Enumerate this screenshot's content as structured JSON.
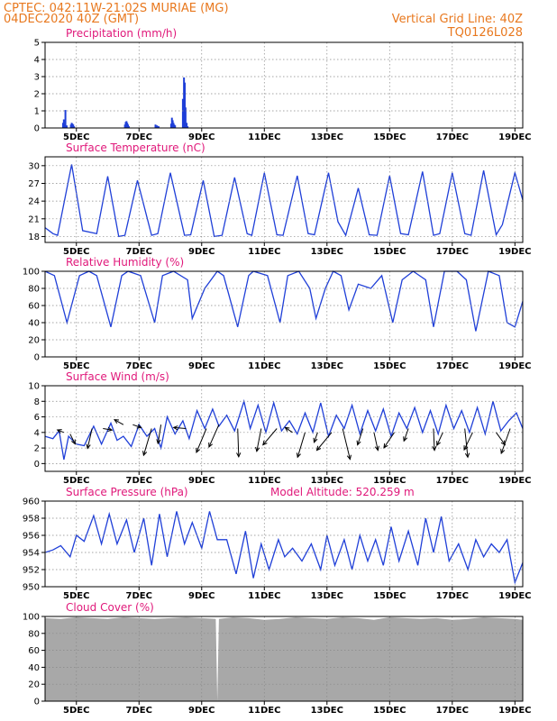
{
  "header": {
    "line1": "CPTEC:   042:11W-21:02S   MURIAE (MG)",
    "line2": "04DEC2020 40Z (GMT)",
    "grid_note": "Vertical Grid Line: 40Z",
    "run_code": "TQ0126L028"
  },
  "colors": {
    "header": "#e8781e",
    "panel_title": "#e0187a",
    "series": "#1f3fd8",
    "cloud": "#a8a8a8",
    "grid": "#888888"
  },
  "chart_data": [
    {
      "id": "precip",
      "type": "bar",
      "title": "Precipitation (mm/h)",
      "ylim": [
        0,
        5
      ],
      "yticks": [
        0,
        1,
        2,
        3,
        4,
        5
      ],
      "x_tick_labels": [
        "5DEC",
        "7DEC",
        "9DEC",
        "11DEC",
        "13DEC",
        "15DEC",
        "17DEC",
        "19DEC"
      ],
      "x": [
        1.15,
        1.2,
        1.27,
        1.3,
        1.38,
        1.65,
        1.7,
        1.75,
        1.8,
        1.85,
        5.1,
        5.15,
        5.2,
        5.25,
        5.3,
        5.35,
        7.05,
        7.15,
        7.25,
        8.05,
        8.1,
        8.15,
        8.2,
        8.25,
        8.3,
        8.8,
        8.87,
        8.92,
        8.97,
        9.04,
        9.1
      ],
      "values": [
        0.3,
        0.5,
        0.2,
        1.05,
        0.15,
        0.2,
        0.3,
        0.25,
        0.2,
        0.1,
        0.2,
        0.35,
        0.4,
        0.3,
        0.2,
        0.1,
        0.2,
        0.15,
        0.1,
        0.25,
        0.6,
        0.45,
        0.3,
        0.2,
        0.15,
        1.7,
        2.95,
        2.65,
        1.2,
        0.3,
        0.1
      ],
      "grid": true
    },
    {
      "id": "temp",
      "type": "line",
      "title": "Surface Temperature (nC)",
      "ylim": [
        17,
        31.5
      ],
      "yticks": [
        18,
        21,
        24,
        27,
        30
      ],
      "x_tick_labels": [
        "5DEC",
        "7DEC",
        "9DEC",
        "11DEC",
        "13DEC",
        "15DEC",
        "17DEC",
        "19DEC"
      ],
      "x": [
        0,
        0.5,
        0.8,
        1.7,
        2.4,
        3.3,
        4.0,
        4.7,
        5.1,
        5.9,
        6.8,
        7.2,
        8.0,
        8.9,
        9.3,
        10.1,
        10.8,
        11.3,
        12.1,
        12.9,
        13.2,
        14.0,
        14.8,
        15.2,
        16.1,
        16.8,
        17.2,
        18.1,
        18.7,
        19.2,
        20.0,
        20.7,
        21.2,
        22.0,
        22.7,
        23.2,
        24.1,
        24.8,
        25.2,
        26.0,
        26.8,
        27.2,
        28.0,
        28.8,
        29.2,
        30.0,
        30.5
      ],
      "values": [
        19.5,
        18.5,
        18.2,
        30.2,
        19.0,
        18.5,
        28.2,
        18.0,
        18.2,
        27.5,
        18.2,
        18.5,
        28.8,
        18.2,
        18.3,
        27.5,
        18.0,
        18.2,
        28.0,
        18.5,
        18.2,
        28.8,
        18.3,
        18.2,
        28.3,
        18.5,
        18.3,
        28.8,
        20.5,
        18.2,
        26.2,
        18.3,
        18.2,
        28.3,
        18.5,
        18.3,
        29.0,
        18.2,
        18.5,
        28.8,
        18.5,
        18.2,
        29.2,
        18.3,
        20.0,
        28.8,
        24.2
      ],
      "grid": true
    },
    {
      "id": "rh",
      "type": "line",
      "title": "Relative Humidity (%)",
      "ylim": [
        0,
        100
      ],
      "yticks": [
        0,
        20,
        40,
        60,
        80,
        100
      ],
      "x_tick_labels": [
        "5DEC",
        "7DEC",
        "9DEC",
        "11DEC",
        "13DEC",
        "15DEC",
        "17DEC",
        "19DEC"
      ],
      "x": [
        0,
        0.6,
        1.4,
        2.2,
        2.8,
        3.3,
        4.2,
        4.9,
        5.3,
        6.1,
        7.0,
        7.5,
        8.2,
        9.1,
        9.4,
        10.2,
        11.0,
        11.4,
        12.3,
        13.0,
        13.3,
        14.2,
        15.0,
        15.5,
        16.2,
        16.9,
        17.3,
        17.9,
        18.4,
        18.9,
        19.4,
        20.0,
        20.8,
        21.5,
        22.2,
        22.8,
        23.5,
        24.3,
        24.8,
        25.5,
        26.3,
        26.9,
        27.5,
        28.3,
        29.0,
        29.5,
        30.0,
        30.5
      ],
      "values": [
        100,
        95,
        40,
        95,
        100,
        95,
        35,
        95,
        100,
        95,
        40,
        95,
        100,
        90,
        45,
        80,
        100,
        95,
        35,
        95,
        100,
        95,
        40,
        95,
        100,
        80,
        45,
        80,
        100,
        95,
        55,
        85,
        80,
        95,
        40,
        90,
        100,
        90,
        35,
        100,
        100,
        90,
        30,
        100,
        95,
        40,
        35,
        65
      ],
      "grid": true
    },
    {
      "id": "wind",
      "type": "line",
      "title": "Surface Wind (m/s)",
      "ylim": [
        -1,
        10
      ],
      "yticks": [
        0,
        2,
        4,
        6,
        8,
        10
      ],
      "x_tick_labels": [
        "5DEC",
        "7DEC",
        "9DEC",
        "11DEC",
        "13DEC",
        "15DEC",
        "17DEC",
        "19DEC"
      ],
      "x": [
        0,
        0.5,
        0.9,
        1.2,
        1.5,
        2.0,
        2.5,
        3.1,
        3.6,
        4.2,
        4.6,
        5.0,
        5.5,
        6.0,
        6.5,
        7.0,
        7.4,
        7.8,
        8.3,
        8.8,
        9.2,
        9.7,
        10.2,
        10.7,
        11.1,
        11.6,
        12.1,
        12.7,
        13.1,
        13.6,
        14.1,
        14.6,
        15.1,
        15.6,
        16.1,
        16.6,
        17.1,
        17.6,
        18.1,
        18.6,
        19.1,
        19.6,
        20.1,
        20.6,
        21.1,
        21.6,
        22.1,
        22.6,
        23.1,
        23.6,
        24.1,
        24.6,
        25.1,
        25.6,
        26.1,
        26.6,
        27.1,
        27.6,
        28.1,
        28.6,
        29.1,
        29.6,
        30.1,
        30.5
      ],
      "values": [
        3.5,
        3.2,
        4.2,
        0.5,
        3.5,
        2.5,
        2.3,
        4.8,
        2.5,
        5.2,
        3.0,
        3.5,
        2.2,
        5.0,
        3.5,
        4.5,
        2.0,
        6.0,
        3.8,
        5.5,
        3.2,
        6.8,
        4.5,
        7.0,
        4.8,
        6.2,
        4.2,
        8.0,
        4.5,
        7.5,
        4.0,
        7.8,
        4.2,
        5.5,
        3.8,
        6.5,
        4.0,
        7.8,
        3.5,
        6.2,
        4.5,
        7.5,
        3.8,
        6.8,
        4.2,
        7.0,
        3.5,
        6.5,
        4.5,
        7.2,
        4.0,
        6.8,
        3.8,
        7.5,
        4.5,
        6.8,
        4.0,
        7.2,
        3.8,
        8.0,
        4.2,
        5.5,
        6.5,
        4.5
      ],
      "arrows": {
        "x": [
          1.2,
          1.6,
          3.0,
          3.7,
          5.0,
          5.6,
          6.8,
          7.4,
          9.0,
          10.3,
          11.1,
          12.3,
          13.8,
          14.8,
          15.8,
          16.6,
          17.4,
          18.3,
          19.0,
          20.3,
          21.0,
          22.3,
          23.2,
          24.8,
          25.4,
          26.8,
          27.3,
          28.8,
          29.7
        ],
        "value": [
          4.0,
          3.8,
          4.5,
          4.5,
          5.0,
          5.0,
          4.5,
          5.0,
          4.5,
          4.5,
          5.0,
          4.5,
          4.5,
          4.5,
          4.0,
          4.0,
          4.0,
          4.0,
          4.5,
          4.5,
          4.0,
          4.0,
          4.5,
          4.5,
          4.0,
          4.5,
          4.0,
          4.0,
          4.5
        ],
        "u": [
          -1.3,
          1.0,
          -0.9,
          1.8,
          -1.8,
          1.7,
          -1.6,
          -0.6,
          -2.5,
          -2.0,
          -2.0,
          0.2,
          -0.9,
          -2.8,
          -1.5,
          -1.5,
          -0.7,
          -3.0,
          1.5,
          -1.1,
          0.8,
          -2.1,
          -0.9,
          0.2,
          -1.2,
          0.6,
          -1.7,
          1.8,
          -1.8
        ],
        "v": [
          0.5,
          -2.0,
          -4.0,
          -0.3,
          1.0,
          -0.6,
          -5.4,
          -3.8,
          0.2,
          -4.8,
          -4.5,
          -5.7,
          -4.6,
          -3.3,
          1.0,
          -5.0,
          -2.0,
          -3.6,
          -6.2,
          -3.3,
          -3.6,
          -3.1,
          -2.5,
          -4.4,
          -2.6,
          -5.8,
          -3.5,
          -2.5,
          -5.0
        ]
      },
      "grid": true
    },
    {
      "id": "press",
      "type": "line",
      "title": "Surface Pressure (hPa)",
      "annotation": "Model Altitude: 520.259  m",
      "ylim": [
        950,
        960
      ],
      "yticks": [
        950,
        952,
        954,
        956,
        958,
        960
      ],
      "x_tick_labels": [
        "5DEC",
        "7DEC",
        "9DEC",
        "11DEC",
        "13DEC",
        "15DEC",
        "17DEC",
        "19DEC"
      ],
      "x": [
        0,
        0.5,
        1.0,
        1.6,
        2.0,
        2.5,
        3.1,
        3.6,
        4.1,
        4.6,
        5.2,
        5.7,
        6.3,
        6.8,
        7.3,
        7.8,
        8.4,
        8.9,
        9.4,
        10.0,
        10.5,
        11.0,
        11.6,
        12.2,
        12.8,
        13.3,
        13.8,
        14.3,
        14.9,
        15.3,
        15.8,
        16.4,
        17.0,
        17.6,
        18.0,
        18.5,
        19.1,
        19.6,
        20.1,
        20.6,
        21.1,
        21.6,
        22.1,
        22.6,
        23.2,
        23.8,
        24.3,
        24.8,
        25.3,
        25.8,
        26.4,
        27.0,
        27.5,
        28.0,
        28.5,
        29.0,
        29.5,
        30.0,
        30.5
      ],
      "values": [
        954.0,
        954.3,
        954.8,
        953.5,
        956.0,
        955.3,
        958.3,
        955.0,
        958.5,
        955.0,
        957.8,
        954.0,
        958.0,
        952.5,
        958.5,
        953.5,
        958.8,
        955.0,
        957.5,
        954.5,
        958.8,
        955.5,
        955.5,
        951.5,
        956.5,
        951.0,
        955.0,
        952.0,
        955.5,
        953.5,
        954.5,
        953.0,
        955.0,
        952.0,
        956.0,
        952.5,
        955.5,
        952.0,
        956.0,
        953.0,
        955.5,
        952.5,
        957.0,
        953.0,
        956.5,
        952.5,
        958.0,
        954.0,
        958.2,
        953.0,
        955.0,
        952.0,
        955.5,
        953.5,
        955.0,
        954.0,
        955.5,
        950.5,
        952.8
      ],
      "grid": true
    },
    {
      "id": "cloud",
      "type": "area",
      "title": "Cloud Cover (%)",
      "ylim": [
        0,
        100
      ],
      "yticks": [
        0,
        20,
        40,
        60,
        80,
        100
      ],
      "x_tick_labels": [
        "5DEC",
        "7DEC",
        "9DEC",
        "11DEC",
        "13DEC",
        "15DEC",
        "17DEC",
        "19DEC"
      ],
      "x": [
        0,
        1,
        2,
        3,
        4,
        5,
        6,
        7,
        8,
        9,
        10,
        10.9,
        11.0,
        11.1,
        12,
        13,
        14,
        15,
        16,
        17,
        18,
        19,
        20,
        21,
        22,
        23,
        24,
        25,
        26,
        27,
        28,
        29,
        30,
        30.5
      ],
      "values": [
        98,
        97,
        99,
        98,
        97,
        99,
        98,
        97,
        98,
        99,
        98,
        97,
        0,
        97,
        99,
        98,
        96,
        97,
        99,
        98,
        97,
        99,
        98,
        96,
        99,
        98,
        97,
        98,
        96,
        97,
        99,
        98,
        97,
        96
      ],
      "grid": true
    }
  ]
}
